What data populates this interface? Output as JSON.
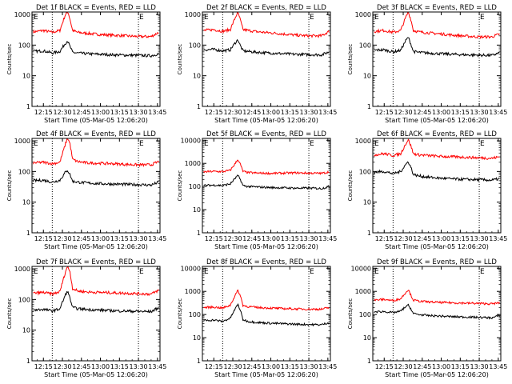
{
  "figure": {
    "xlabel_template": "Start Time (05-Mar-05 12:06:20)",
    "ylabel": "Counts/sec",
    "x_ticks": [
      "12:15",
      "12:30",
      "12:45",
      "13:00",
      "13:15",
      "13:30",
      "13:45"
    ],
    "y_ticks": [
      "1",
      "10",
      "100",
      "1000",
      "10000"
    ],
    "corner_marks": [
      "E",
      "E"
    ],
    "colors": {
      "events": "#000000",
      "lld": "#ff0000",
      "dotted_lines": "#000000"
    }
  },
  "chart_data": [
    {
      "type": "line",
      "title": "Det 1f BLACK = Events, RED = LLD",
      "xlabel": "Start Time (05-Mar-05 12:06:20)",
      "ylabel": "Counts/sec",
      "x_unit": "minutes after 12:00",
      "xlim": [
        "12:06",
        "13:47"
      ],
      "ylim": [
        1,
        1200
      ],
      "ytick_labels": [
        "1",
        "10",
        "100",
        "1000"
      ],
      "vlines": [
        "12:22",
        "13:30"
      ],
      "series": [
        {
          "name": "LLD",
          "color": "#ff0000",
          "x": [
            "12:07",
            "12:15",
            "12:22",
            "12:28",
            "12:32",
            "12:34",
            "12:36",
            "12:38",
            "12:42",
            "12:50",
            "13:00",
            "13:10",
            "13:20",
            "13:30",
            "13:40",
            "13:46"
          ],
          "values": [
            270,
            300,
            260,
            300,
            900,
            1400,
            700,
            300,
            260,
            240,
            220,
            210,
            200,
            190,
            190,
            260
          ]
        },
        {
          "name": "Events",
          "color": "#000000",
          "x": [
            "12:07",
            "12:15",
            "12:22",
            "12:28",
            "12:32",
            "12:34",
            "12:36",
            "12:38",
            "12:42",
            "12:50",
            "13:00",
            "13:10",
            "13:20",
            "13:30",
            "13:40",
            "13:46"
          ],
          "values": [
            62,
            65,
            55,
            62,
            110,
            140,
            90,
            58,
            55,
            52,
            50,
            48,
            47,
            46,
            45,
            52
          ]
        }
      ]
    },
    {
      "type": "line",
      "title": "Det 2f BLACK = Events, RED = LLD",
      "xlabel": "Start Time (05-Mar-05 12:06:20)",
      "ylabel": "Counts/sec",
      "x_unit": "minutes after 12:00",
      "xlim": [
        "12:06",
        "13:47"
      ],
      "ylim": [
        1,
        1200
      ],
      "ytick_labels": [
        "1",
        "10",
        "100",
        "1000"
      ],
      "vlines": [
        "12:22",
        "13:30"
      ],
      "series": [
        {
          "name": "LLD",
          "color": "#ff0000",
          "x": [
            "12:07",
            "12:15",
            "12:22",
            "12:28",
            "12:32",
            "12:34",
            "12:36",
            "12:38",
            "12:42",
            "12:50",
            "13:00",
            "13:10",
            "13:20",
            "13:30",
            "13:40",
            "13:46"
          ],
          "values": [
            300,
            320,
            280,
            320,
            800,
            1200,
            650,
            320,
            300,
            270,
            250,
            230,
            210,
            200,
            200,
            280
          ]
        },
        {
          "name": "Events",
          "color": "#000000",
          "x": [
            "12:07",
            "12:15",
            "12:22",
            "12:28",
            "12:32",
            "12:34",
            "12:36",
            "12:38",
            "12:42",
            "12:50",
            "13:00",
            "13:10",
            "13:20",
            "13:30",
            "13:40",
            "13:46"
          ],
          "values": [
            70,
            72,
            65,
            70,
            120,
            150,
            95,
            65,
            62,
            58,
            55,
            52,
            50,
            49,
            48,
            60
          ]
        }
      ]
    },
    {
      "type": "line",
      "title": "Det 3f BLACK = Events, RED = LLD",
      "xlabel": "Start Time (05-Mar-05 12:06:20)",
      "ylabel": "Counts/sec",
      "x_unit": "minutes after 12:00",
      "xlim": [
        "12:06",
        "13:47"
      ],
      "ylim": [
        1,
        1200
      ],
      "ytick_labels": [
        "1",
        "10",
        "100",
        "1000"
      ],
      "vlines": [
        "12:22",
        "13:30"
      ],
      "series": [
        {
          "name": "LLD",
          "color": "#ff0000",
          "x": [
            "12:07",
            "12:15",
            "12:22",
            "12:28",
            "12:32",
            "12:34",
            "12:36",
            "12:38",
            "12:42",
            "12:50",
            "13:00",
            "13:10",
            "13:20",
            "13:30",
            "13:40",
            "13:46"
          ],
          "values": [
            280,
            300,
            260,
            300,
            800,
            1200,
            700,
            300,
            270,
            250,
            230,
            210,
            195,
            185,
            185,
            230
          ]
        },
        {
          "name": "Events",
          "color": "#000000",
          "x": [
            "12:07",
            "12:15",
            "12:22",
            "12:28",
            "12:32",
            "12:34",
            "12:36",
            "12:38",
            "12:42",
            "12:50",
            "13:00",
            "13:10",
            "13:20",
            "13:30",
            "13:40",
            "13:46"
          ],
          "values": [
            68,
            70,
            60,
            68,
            140,
            180,
            110,
            62,
            58,
            55,
            52,
            50,
            48,
            47,
            46,
            56
          ]
        }
      ]
    },
    {
      "type": "line",
      "title": "Det 4f BLACK = Events, RED = LLD",
      "xlabel": "Start Time (05-Mar-05 12:06:20)",
      "ylabel": "Counts/sec",
      "x_unit": "minutes after 12:00",
      "xlim": [
        "12:06",
        "13:47"
      ],
      "ylim": [
        1,
        1200
      ],
      "ytick_labels": [
        "1",
        "10",
        "100",
        "1000"
      ],
      "vlines": [
        "12:22",
        "13:30"
      ],
      "series": [
        {
          "name": "LLD",
          "color": "#ff0000",
          "x": [
            "12:07",
            "12:15",
            "12:22",
            "12:28",
            "12:32",
            "12:34",
            "12:36",
            "12:38",
            "12:42",
            "12:50",
            "13:00",
            "13:10",
            "13:20",
            "13:30",
            "13:40",
            "13:46"
          ],
          "values": [
            190,
            200,
            180,
            200,
            700,
            1300,
            800,
            250,
            210,
            190,
            185,
            180,
            170,
            165,
            165,
            210
          ]
        },
        {
          "name": "Events",
          "color": "#000000",
          "x": [
            "12:07",
            "12:15",
            "12:22",
            "12:28",
            "12:32",
            "12:34",
            "12:36",
            "12:38",
            "12:42",
            "12:50",
            "13:00",
            "13:10",
            "13:20",
            "13:30",
            "13:40",
            "13:46"
          ],
          "values": [
            50,
            52,
            45,
            52,
            90,
            110,
            80,
            48,
            45,
            42,
            40,
            39,
            38,
            37,
            36,
            45
          ]
        }
      ]
    },
    {
      "type": "line",
      "title": "Det 5f BLACK = Events, RED = LLD",
      "xlabel": "Start Time (05-Mar-05 12:06:20)",
      "ylabel": "Counts/sec",
      "x_unit": "minutes after 12:00",
      "xlim": [
        "12:06",
        "13:47"
      ],
      "ylim": [
        1,
        12000
      ],
      "ytick_labels": [
        "1",
        "10",
        "100",
        "1000",
        "10000"
      ],
      "vlines": [
        "12:22",
        "13:30"
      ],
      "series": [
        {
          "name": "LLD",
          "color": "#ff0000",
          "x": [
            "12:07",
            "12:15",
            "12:22",
            "12:28",
            "12:32",
            "12:34",
            "12:36",
            "12:38",
            "12:42",
            "12:50",
            "13:00",
            "13:10",
            "13:20",
            "13:30",
            "13:40",
            "13:46"
          ],
          "values": [
            430,
            450,
            440,
            500,
            1000,
            1500,
            900,
            450,
            400,
            380,
            370,
            380,
            390,
            380,
            370,
            430
          ]
        },
        {
          "name": "Events",
          "color": "#000000",
          "x": [
            "12:07",
            "12:15",
            "12:22",
            "12:28",
            "12:32",
            "12:34",
            "12:36",
            "12:38",
            "12:42",
            "12:50",
            "13:00",
            "13:10",
            "13:20",
            "13:30",
            "13:40",
            "13:46"
          ],
          "values": [
            110,
            115,
            110,
            130,
            230,
            300,
            200,
            110,
            100,
            95,
            90,
            88,
            85,
            85,
            82,
            100
          ]
        }
      ]
    },
    {
      "type": "line",
      "title": "Det 6f BLACK = Events, RED = LLD",
      "xlabel": "Start Time (05-Mar-05 12:06:20)",
      "ylabel": "Counts/sec",
      "x_unit": "minutes after 12:00",
      "xlim": [
        "12:06",
        "13:47"
      ],
      "ylim": [
        1,
        1200
      ],
      "ytick_labels": [
        "1",
        "10",
        "100",
        "1000"
      ],
      "vlines": [
        "12:22",
        "13:30"
      ],
      "series": [
        {
          "name": "LLD",
          "color": "#ff0000",
          "x": [
            "12:07",
            "12:15",
            "12:22",
            "12:28",
            "12:32",
            "12:34",
            "12:36",
            "12:38",
            "12:42",
            "12:50",
            "13:00",
            "13:10",
            "13:20",
            "13:30",
            "13:40",
            "13:46"
          ],
          "values": [
            350,
            380,
            330,
            380,
            800,
            1100,
            700,
            380,
            350,
            330,
            310,
            300,
            290,
            280,
            270,
            300
          ]
        },
        {
          "name": "Events",
          "color": "#000000",
          "x": [
            "12:07",
            "12:15",
            "12:22",
            "12:28",
            "12:32",
            "12:34",
            "12:36",
            "12:38",
            "12:42",
            "12:50",
            "13:00",
            "13:10",
            "13:20",
            "13:30",
            "13:40",
            "13:46"
          ],
          "values": [
            95,
            100,
            85,
            100,
            170,
            210,
            140,
            80,
            72,
            65,
            60,
            57,
            55,
            54,
            52,
            58
          ]
        }
      ]
    },
    {
      "type": "line",
      "title": "Det 7f BLACK = Events, RED = LLD",
      "xlabel": "Start Time (05-Mar-05 12:06:20)",
      "ylabel": "Counts/sec",
      "x_unit": "minutes after 12:00",
      "xlim": [
        "12:06",
        "13:47"
      ],
      "ylim": [
        1,
        1200
      ],
      "ytick_labels": [
        "1",
        "10",
        "100",
        "1000"
      ],
      "vlines": [
        "12:22",
        "13:30"
      ],
      "series": [
        {
          "name": "LLD",
          "color": "#ff0000",
          "x": [
            "12:07",
            "12:15",
            "12:22",
            "12:28",
            "12:32",
            "12:34",
            "12:36",
            "12:38",
            "12:42",
            "12:50",
            "13:00",
            "13:10",
            "13:20",
            "13:30",
            "13:40",
            "13:46"
          ],
          "values": [
            160,
            170,
            150,
            180,
            700,
            1300,
            800,
            230,
            190,
            175,
            170,
            165,
            160,
            155,
            150,
            200
          ]
        },
        {
          "name": "Events",
          "color": "#000000",
          "x": [
            "12:07",
            "12:15",
            "12:22",
            "12:28",
            "12:32",
            "12:34",
            "12:36",
            "12:38",
            "12:42",
            "12:50",
            "13:00",
            "13:10",
            "13:20",
            "13:30",
            "13:40",
            "13:46"
          ],
          "values": [
            45,
            48,
            42,
            50,
            130,
            190,
            110,
            55,
            50,
            47,
            45,
            43,
            42,
            41,
            40,
            55
          ]
        }
      ]
    },
    {
      "type": "line",
      "title": "Det 8f BLACK = Events, RED = LLD",
      "xlabel": "Start Time (05-Mar-05 12:06:20)",
      "ylabel": "Counts/sec",
      "x_unit": "minutes after 12:00",
      "xlim": [
        "12:06",
        "13:47"
      ],
      "ylim": [
        1,
        12000
      ],
      "ytick_labels": [
        "1",
        "10",
        "100",
        "1000",
        "10000"
      ],
      "vlines": [
        "12:22",
        "13:30"
      ],
      "series": [
        {
          "name": "LLD",
          "color": "#ff0000",
          "x": [
            "12:07",
            "12:15",
            "12:22",
            "12:28",
            "12:32",
            "12:34",
            "12:36",
            "12:38",
            "12:42",
            "12:50",
            "13:00",
            "13:10",
            "13:20",
            "13:30",
            "13:40",
            "13:46"
          ],
          "values": [
            200,
            210,
            190,
            250,
            700,
            1100,
            650,
            250,
            220,
            200,
            190,
            180,
            175,
            170,
            170,
            200
          ]
        },
        {
          "name": "Events",
          "color": "#000000",
          "x": [
            "12:07",
            "12:15",
            "12:22",
            "12:28",
            "12:32",
            "12:34",
            "12:36",
            "12:38",
            "12:42",
            "12:50",
            "13:00",
            "13:10",
            "13:20",
            "13:30",
            "13:40",
            "13:46"
          ],
          "values": [
            55,
            58,
            50,
            70,
            180,
            280,
            150,
            60,
            50,
            45,
            42,
            40,
            38,
            37,
            36,
            45
          ]
        }
      ]
    },
    {
      "type": "line",
      "title": "Det 9f BLACK = Events, RED = LLD",
      "xlabel": "Start Time (05-Mar-05 12:06:20)",
      "ylabel": "Counts/sec",
      "x_unit": "minutes after 12:00",
      "xlim": [
        "12:06",
        "13:47"
      ],
      "ylim": [
        1,
        12000
      ],
      "ytick_labels": [
        "1",
        "10",
        "100",
        "1000",
        "10000"
      ],
      "vlines": [
        "12:22",
        "13:30"
      ],
      "series": [
        {
          "name": "LLD",
          "color": "#ff0000",
          "x": [
            "12:07",
            "12:15",
            "12:22",
            "12:28",
            "12:32",
            "12:34",
            "12:36",
            "12:38",
            "12:42",
            "12:50",
            "13:00",
            "13:10",
            "13:20",
            "13:30",
            "13:40",
            "13:46"
          ],
          "values": [
            420,
            450,
            400,
            480,
            900,
            1200,
            700,
            420,
            380,
            350,
            330,
            320,
            310,
            300,
            290,
            320
          ]
        },
        {
          "name": "Events",
          "color": "#000000",
          "x": [
            "12:07",
            "12:15",
            "12:22",
            "12:28",
            "12:32",
            "12:34",
            "12:36",
            "12:38",
            "12:42",
            "12:50",
            "13:00",
            "13:10",
            "13:20",
            "13:30",
            "13:40",
            "13:46"
          ],
          "values": [
            130,
            135,
            120,
            140,
            220,
            250,
            180,
            110,
            100,
            90,
            85,
            80,
            78,
            75,
            72,
            90
          ]
        }
      ]
    }
  ]
}
